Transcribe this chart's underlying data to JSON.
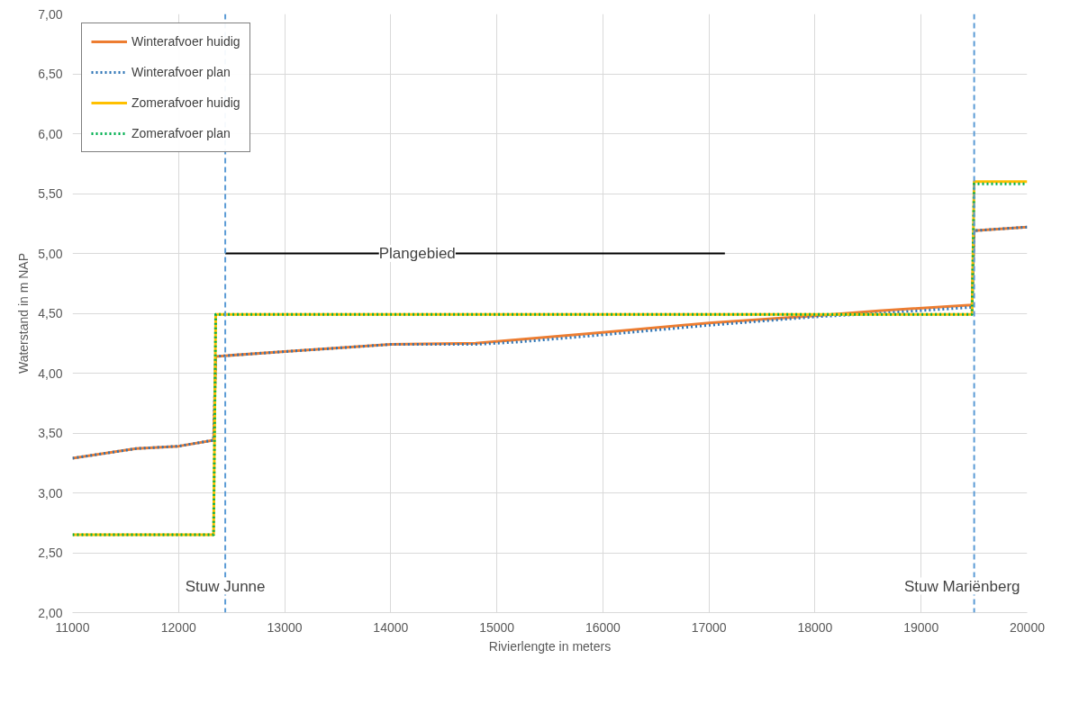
{
  "chart_data": {
    "type": "line",
    "xlabel": "Rivierlengte in meters",
    "ylabel": "Waterstand in m NAP",
    "xlim": [
      11000,
      20000
    ],
    "xticks": [
      11000,
      12000,
      13000,
      14000,
      15000,
      16000,
      17000,
      18000,
      19000,
      20000
    ],
    "ylim": [
      2,
      7
    ],
    "yticks": [
      {
        "value": 2,
        "label": "2,00"
      },
      {
        "value": 2.5,
        "label": "2,50"
      },
      {
        "value": 3,
        "label": "3,00"
      },
      {
        "value": 3.5,
        "label": "3,50"
      },
      {
        "value": 4,
        "label": "4,00"
      },
      {
        "value": 4.5,
        "label": "4,50"
      },
      {
        "value": 5,
        "label": "5,00"
      },
      {
        "value": 5.5,
        "label": "5,50"
      },
      {
        "value": 6,
        "label": "6,00"
      },
      {
        "value": 6.5,
        "label": "6,50"
      },
      {
        "value": 7,
        "label": "7,00"
      }
    ],
    "grid": true,
    "legend": "top left",
    "series": [
      {
        "name": "Winterafvoer huidig",
        "color": "#ed7d31",
        "line_style": "solid",
        "x": [
          11000,
          11600,
          12000,
          12330,
          12350,
          13000,
          14000,
          14800,
          15200,
          16000,
          17000,
          18000,
          18600,
          19480,
          19500,
          20000
        ],
        "values": [
          3.29,
          3.37,
          3.39,
          3.44,
          4.14,
          4.18,
          4.24,
          4.25,
          4.28,
          4.34,
          4.42,
          4.48,
          4.52,
          4.57,
          5.19,
          5.22
        ]
      },
      {
        "name": "Winterafvoer plan",
        "color": "#2e75b6",
        "line_style": "dotted",
        "x": [
          11000,
          11600,
          12000,
          12330,
          12350,
          13000,
          14000,
          14800,
          15200,
          16000,
          17000,
          18000,
          18600,
          19480,
          19500,
          20000
        ],
        "values": [
          3.29,
          3.37,
          3.39,
          3.44,
          4.14,
          4.18,
          4.24,
          4.24,
          4.26,
          4.32,
          4.4,
          4.47,
          4.5,
          4.55,
          5.19,
          5.22
        ]
      },
      {
        "name": "Zomerafvoer huidig",
        "color": "#ffc000",
        "line_style": "solid",
        "x": [
          11000,
          12330,
          12350,
          19480,
          19500,
          20000
        ],
        "values": [
          2.65,
          2.65,
          4.49,
          4.49,
          5.6,
          5.6
        ]
      },
      {
        "name": "Zomerafvoer plan",
        "color": "#00b050",
        "line_style": "dotted",
        "x": [
          11000,
          12330,
          12350,
          19480,
          19500,
          20000
        ],
        "values": [
          2.65,
          2.65,
          4.49,
          4.49,
          5.58,
          5.58
        ]
      },
      {
        "color": "#000000",
        "line_style": "solid",
        "x": [
          12440,
          17150
        ],
        "values": [
          5.0,
          5.0
        ]
      }
    ],
    "ref_lines": [
      {
        "axis": "x",
        "value": 12440,
        "label": "Stuw Junne",
        "color": "#5b9bd5",
        "line_style": "dashed"
      },
      {
        "axis": "x",
        "value": 19500,
        "label": "Stuw Mariënberg",
        "color": "#5b9bd5",
        "line_style": "dashed"
      }
    ],
    "annotations": [
      {
        "text": "Plangebied",
        "x": 14250,
        "y": 5.0
      }
    ]
  }
}
